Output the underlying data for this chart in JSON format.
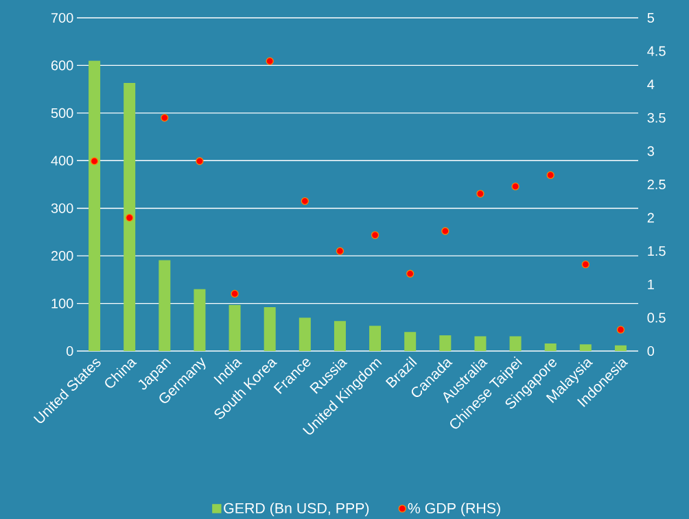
{
  "chart_data": {
    "type": "bar",
    "categories": [
      "United States",
      "China",
      "Japan",
      "Germany",
      "India",
      "South Korea",
      "France",
      "Russia",
      "United Kingdom",
      "Brazil",
      "Canada",
      "Australia",
      "Chinese Taipei",
      "Singapore",
      "Malaysia",
      "Indonesia"
    ],
    "series": [
      {
        "name": "GERD (Bn USD, PPP)",
        "color": "#92d050",
        "values": [
          610,
          563,
          191,
          130,
          97,
          92,
          70,
          63,
          53,
          40,
          33,
          31,
          31,
          16,
          14,
          12
        ]
      },
      {
        "name": "% GDP (RHS)",
        "type": "scatter",
        "axis": "y2",
        "color": "#ff0000",
        "values": [
          2.85,
          2.0,
          3.5,
          2.85,
          0.86,
          4.35,
          2.25,
          1.5,
          1.74,
          1.16,
          1.8,
          2.36,
          2.47,
          2.64,
          1.3,
          0.32
        ]
      }
    ],
    "ylim": [
      0,
      700
    ],
    "yticks": [
      0,
      100,
      200,
      300,
      400,
      500,
      600,
      700
    ],
    "y2lim": [
      0,
      5
    ],
    "y2ticks": [
      0,
      0.5,
      1,
      1.5,
      2,
      2.5,
      3,
      3.5,
      4,
      4.5,
      5
    ],
    "grid": "y",
    "legend": "bottom",
    "marker": "circle"
  }
}
